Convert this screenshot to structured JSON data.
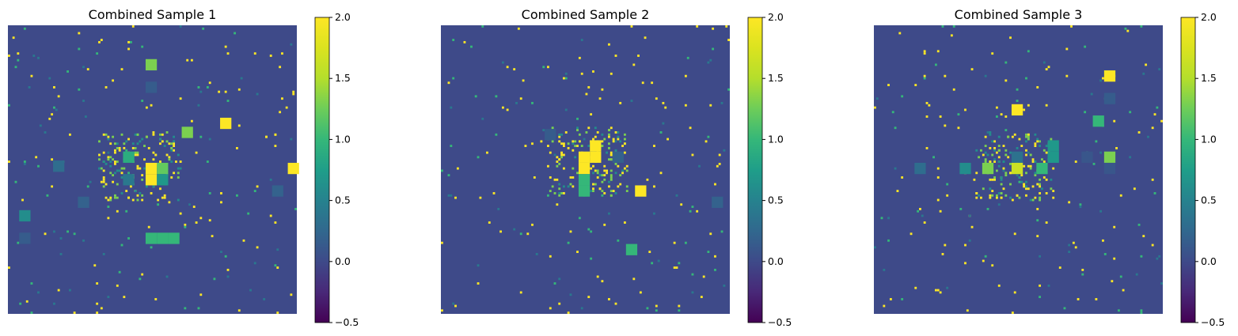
{
  "chart_data": [
    {
      "type": "heatmap",
      "title": "Combined Sample 1",
      "grid_size": 128,
      "base_value": 0.0,
      "colorbar": {
        "vmin": -0.5,
        "vmax": 2.0,
        "ticks": [
          "2.0",
          "1.5",
          "1.0",
          "0.5",
          "0.0",
          "−0.5"
        ]
      },
      "axes": "off",
      "grid": false,
      "blocks": [
        {
          "r": 15,
          "c": 61,
          "size": 5,
          "value": 1.3
        },
        {
          "r": 25,
          "c": 61,
          "size": 5,
          "value": 0.15
        },
        {
          "r": 41,
          "c": 94,
          "size": 5,
          "value": 2.0
        },
        {
          "r": 45,
          "c": 77,
          "size": 5,
          "value": 1.3
        },
        {
          "r": 56,
          "c": 51,
          "size": 5,
          "value": 0.9
        },
        {
          "r": 60,
          "c": 20,
          "size": 5,
          "value": 0.3
        },
        {
          "r": 61,
          "c": 61,
          "size": 5,
          "value": 2.0
        },
        {
          "r": 61,
          "c": 66,
          "size": 5,
          "value": 1.2
        },
        {
          "r": 66,
          "c": 61,
          "size": 5,
          "value": 2.0
        },
        {
          "r": 66,
          "c": 66,
          "size": 5,
          "value": 0.7
        },
        {
          "r": 66,
          "c": 51,
          "size": 5,
          "value": 0.4
        },
        {
          "r": 61,
          "c": 124,
          "size": 5,
          "value": 2.0
        },
        {
          "r": 71,
          "c": 117,
          "size": 5,
          "value": 0.2
        },
        {
          "r": 76,
          "c": 31,
          "size": 5,
          "value": 0.2
        },
        {
          "r": 82,
          "c": 5,
          "size": 5,
          "value": 0.6
        },
        {
          "r": 92,
          "c": 5,
          "size": 5,
          "value": 0.15
        },
        {
          "r": 92,
          "c": 61,
          "size": 5,
          "value": 1.0
        },
        {
          "r": 92,
          "c": 66,
          "size": 5,
          "value": 1.0
        },
        {
          "r": 92,
          "c": 71,
          "size": 5,
          "value": 1.0
        }
      ]
    },
    {
      "type": "heatmap",
      "title": "Combined Sample 2",
      "grid_size": 128,
      "base_value": 0.0,
      "colorbar": {
        "vmin": -0.5,
        "vmax": 2.0,
        "ticks": [
          "2.0",
          "1.5",
          "1.0",
          "0.5",
          "0.0",
          "−0.5"
        ]
      },
      "axes": "off",
      "grid": false,
      "blocks": [
        {
          "r": 46,
          "c": 46,
          "size": 5,
          "value": 0.15
        },
        {
          "r": 51,
          "c": 66,
          "size": 5,
          "value": 2.0
        },
        {
          "r": 56,
          "c": 61,
          "size": 5,
          "value": 2.0
        },
        {
          "r": 56,
          "c": 66,
          "size": 5,
          "value": 2.0
        },
        {
          "r": 56,
          "c": 76,
          "size": 5,
          "value": 0.2
        },
        {
          "r": 61,
          "c": 61,
          "size": 5,
          "value": 2.0
        },
        {
          "r": 66,
          "c": 61,
          "size": 5,
          "value": 1.0
        },
        {
          "r": 71,
          "c": 61,
          "size": 5,
          "value": 1.0
        },
        {
          "r": 71,
          "c": 86,
          "size": 5,
          "value": 2.0
        },
        {
          "r": 76,
          "c": 120,
          "size": 5,
          "value": 0.2
        },
        {
          "r": 97,
          "c": 82,
          "size": 5,
          "value": 1.0
        }
      ]
    },
    {
      "type": "heatmap",
      "title": "Combined Sample 3",
      "grid_size": 128,
      "base_value": 0.0,
      "colorbar": {
        "vmin": -0.5,
        "vmax": 2.0,
        "ticks": [
          "2.0",
          "1.5",
          "1.0",
          "0.5",
          "0.0",
          "−0.5"
        ]
      },
      "axes": "off",
      "grid": false,
      "blocks": [
        {
          "r": 20,
          "c": 102,
          "size": 5,
          "value": 2.0
        },
        {
          "r": 30,
          "c": 102,
          "size": 5,
          "value": 0.15
        },
        {
          "r": 35,
          "c": 61,
          "size": 5,
          "value": 2.0
        },
        {
          "r": 40,
          "c": 97,
          "size": 5,
          "value": 1.0
        },
        {
          "r": 51,
          "c": 77,
          "size": 5,
          "value": 0.7
        },
        {
          "r": 56,
          "c": 77,
          "size": 5,
          "value": 0.7
        },
        {
          "r": 56,
          "c": 61,
          "size": 5,
          "value": 0.35
        },
        {
          "r": 56,
          "c": 92,
          "size": 5,
          "value": 0.1
        },
        {
          "r": 56,
          "c": 102,
          "size": 5,
          "value": 1.3
        },
        {
          "r": 61,
          "c": 102,
          "size": 5,
          "value": 0.1
        },
        {
          "r": 61,
          "c": 18,
          "size": 5,
          "value": 0.3
        },
        {
          "r": 61,
          "c": 38,
          "size": 5,
          "value": 0.6
        },
        {
          "r": 61,
          "c": 48,
          "size": 5,
          "value": 1.3
        },
        {
          "r": 61,
          "c": 61,
          "size": 5,
          "value": 1.65
        },
        {
          "r": 61,
          "c": 72,
          "size": 5,
          "value": 1.0
        }
      ]
    }
  ]
}
